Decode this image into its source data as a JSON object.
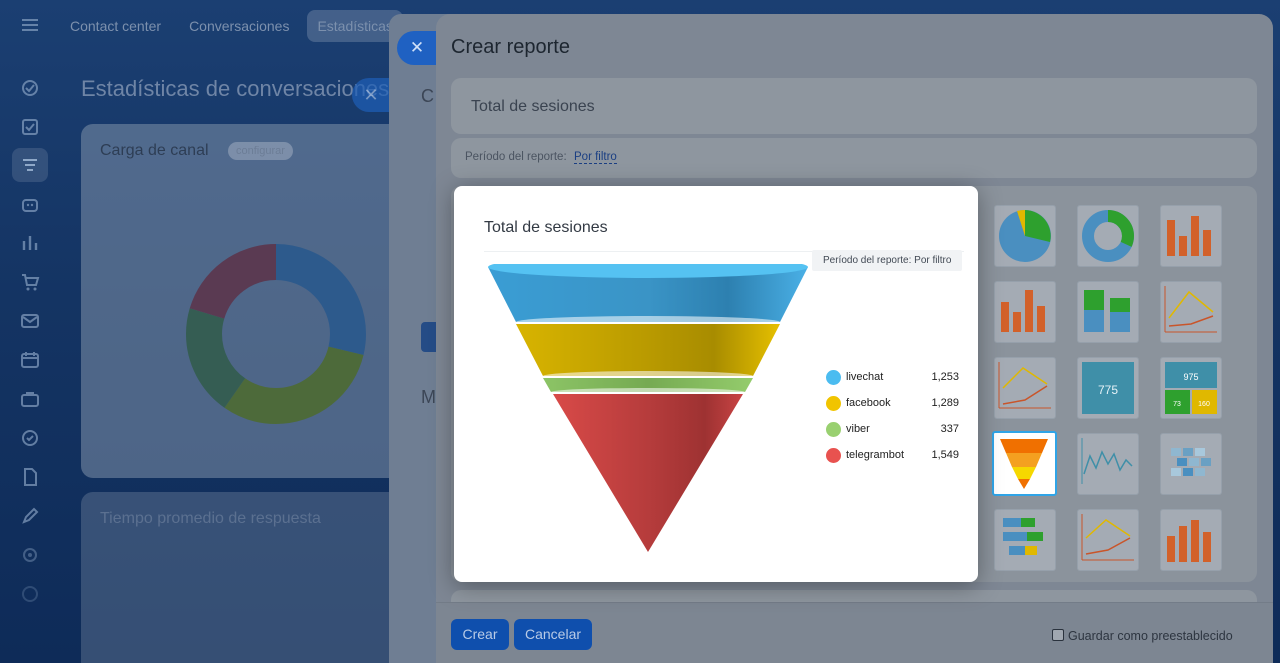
{
  "background": {
    "tabs": [
      "Contact center",
      "Conversaciones",
      "Estadísticas"
    ],
    "page_title": "Estadísticas de conversaciones",
    "card_title": "Carga de canal",
    "card_chip": "configurar",
    "card2_title": "Tiempo promedio de respuesta"
  },
  "panel": {
    "title": "Crear reporte",
    "report_name": "Total de sesiones",
    "period_label": "Período del reporte:",
    "period_value": "Por filtro",
    "create_button": "Crear",
    "cancel_button": "Cancelar",
    "save_preset_label": "Guardar como preestablecido"
  },
  "preview": {
    "title": "Total de sesiones",
    "period_chip": "Período del reporte: Por filtro",
    "legend": [
      {
        "name": "livechat",
        "value": "1,253",
        "color": "#4bbcf0"
      },
      {
        "name": "facebook",
        "value": "1,289",
        "color": "#f1c400"
      },
      {
        "name": "viber",
        "value": "337",
        "color": "#99d070"
      },
      {
        "name": "telegrambot",
        "value": "1,549",
        "color": "#e8524f"
      }
    ]
  },
  "chart_data": {
    "type": "funnel",
    "categories": [
      "livechat",
      "facebook",
      "viber",
      "telegrambot"
    ],
    "values": [
      1253,
      1289,
      337,
      1549
    ],
    "title": "Total de sesiones"
  },
  "thumbnails": [
    "pie-chart",
    "donut-chart",
    "bar-chart",
    "bar-chart",
    "stacked-bar-chart",
    "line-chart",
    "line-chart",
    "number-widget",
    "multi-number-widget",
    "funnel-chart",
    "line-chart",
    "heatmap",
    "horizontal-bar-chart",
    "line-chart",
    "bar-chart"
  ],
  "thumbnail_numbers": {
    "single": "775",
    "multi_top": "975",
    "multi_left": "73",
    "multi_right": "160"
  }
}
